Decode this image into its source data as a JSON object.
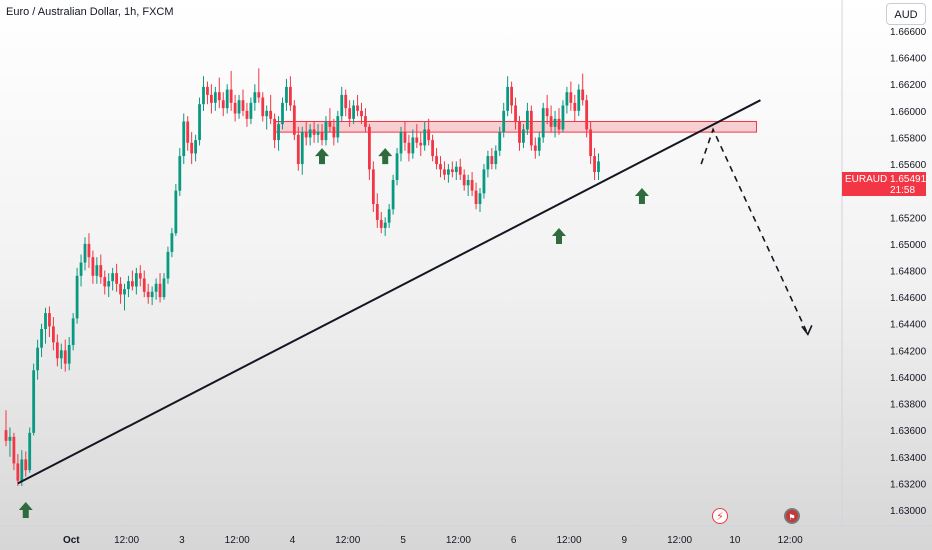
{
  "chart_title": "Euro / Australian Dollar, 1h, FXCM",
  "currency_button": "AUD",
  "price_tag": {
    "symbol": "EURAUD",
    "price": "1.65491",
    "countdown": "21:58",
    "color": "#f23645"
  },
  "colors": {
    "up": "#089981",
    "down": "#f23645",
    "trendline": "#131722",
    "zone": "#f23645",
    "arrow": "#2e6b3e"
  },
  "icons": [
    "flash-icon",
    "flag-icon",
    "up-arrow-icon"
  ],
  "chart_data": {
    "type": "candlestick",
    "title": "Euro / Australian Dollar, 1h, FXCM",
    "ylim": [
      1.629,
      1.667
    ],
    "y_ticks": [
      "1.63000",
      "1.63200",
      "1.63400",
      "1.63600",
      "1.63800",
      "1.64000",
      "1.64200",
      "1.64400",
      "1.64600",
      "1.64800",
      "1.65000",
      "1.65200",
      "1.65400",
      "1.65600",
      "1.65800",
      "1.66000",
      "1.66200",
      "1.66400",
      "1.66600"
    ],
    "y_tick_values": [
      1.63,
      1.632,
      1.634,
      1.636,
      1.638,
      1.64,
      1.642,
      1.644,
      1.646,
      1.648,
      1.65,
      1.652,
      1.654,
      1.656,
      1.658,
      1.66,
      1.662,
      1.664,
      1.666
    ],
    "x_ticks": [
      "Oct",
      "12:00",
      "3",
      "12:00",
      "4",
      "12:00",
      "5",
      "12:00",
      "6",
      "12:00",
      "9",
      "12:00",
      "10",
      "12:00"
    ],
    "x_tick_bars": [
      14,
      28,
      42,
      56,
      70,
      84,
      98,
      112,
      126,
      140,
      154,
      168,
      182,
      196
    ],
    "bar_count_range": [
      0,
      200
    ],
    "ohlc_note": "bars approximated from the screenshot; [open, high, low, close]",
    "bars": [
      [
        1.636,
        1.6375,
        1.6348,
        1.6352
      ],
      [
        1.6352,
        1.6362,
        1.634,
        1.6355
      ],
      [
        1.6355,
        1.6358,
        1.633,
        1.6335
      ],
      [
        1.6335,
        1.6342,
        1.6318,
        1.6322
      ],
      [
        1.6322,
        1.6345,
        1.6318,
        1.6338
      ],
      [
        1.6338,
        1.6344,
        1.6325,
        1.633
      ],
      [
        1.633,
        1.6362,
        1.6328,
        1.6358
      ],
      [
        1.6358,
        1.641,
        1.6356,
        1.6405
      ],
      [
        1.6405,
        1.6428,
        1.6398,
        1.6422
      ],
      [
        1.6422,
        1.644,
        1.6415,
        1.6436
      ],
      [
        1.6436,
        1.6452,
        1.6425,
        1.6448
      ],
      [
        1.6448,
        1.6453,
        1.643,
        1.6438
      ],
      [
        1.6438,
        1.6445,
        1.642,
        1.6426
      ],
      [
        1.6426,
        1.6432,
        1.6408,
        1.6414
      ],
      [
        1.6414,
        1.6425,
        1.6406,
        1.642
      ],
      [
        1.642,
        1.6428,
        1.6404,
        1.641
      ],
      [
        1.641,
        1.643,
        1.6405,
        1.6424
      ],
      [
        1.6424,
        1.6448,
        1.642,
        1.6444
      ],
      [
        1.6444,
        1.6482,
        1.644,
        1.6476
      ],
      [
        1.6476,
        1.6492,
        1.6468,
        1.6486
      ],
      [
        1.6486,
        1.6505,
        1.648,
        1.65
      ],
      [
        1.65,
        1.6508,
        1.6482,
        1.649
      ],
      [
        1.649,
        1.6495,
        1.647,
        1.6476
      ],
      [
        1.6476,
        1.649,
        1.647,
        1.6484
      ],
      [
        1.6484,
        1.6492,
        1.647,
        1.6475
      ],
      [
        1.6475,
        1.648,
        1.6462,
        1.6468
      ],
      [
        1.6468,
        1.6478,
        1.646,
        1.6472
      ],
      [
        1.6472,
        1.6482,
        1.6465,
        1.6478
      ],
      [
        1.6478,
        1.6485,
        1.6464,
        1.647
      ],
      [
        1.647,
        1.6475,
        1.6455,
        1.6462
      ],
      [
        1.6462,
        1.647,
        1.645,
        1.6466
      ],
      [
        1.6466,
        1.6476,
        1.646,
        1.6472
      ],
      [
        1.6472,
        1.648,
        1.6465,
        1.6468
      ],
      [
        1.6468,
        1.6482,
        1.6462,
        1.6478
      ],
      [
        1.6478,
        1.6484,
        1.6468,
        1.6474
      ],
      [
        1.6474,
        1.648,
        1.646,
        1.6464
      ],
      [
        1.6464,
        1.647,
        1.6455,
        1.646
      ],
      [
        1.646,
        1.6468,
        1.6454,
        1.6464
      ],
      [
        1.6464,
        1.6474,
        1.6458,
        1.647
      ],
      [
        1.647,
        1.6478,
        1.6456,
        1.646
      ],
      [
        1.646,
        1.6478,
        1.6458,
        1.6474
      ],
      [
        1.6474,
        1.6498,
        1.647,
        1.6494
      ],
      [
        1.6494,
        1.6512,
        1.649,
        1.6508
      ],
      [
        1.6508,
        1.6545,
        1.6506,
        1.654
      ],
      [
        1.654,
        1.6572,
        1.6536,
        1.6566
      ],
      [
        1.6566,
        1.6598,
        1.656,
        1.6592
      ],
      [
        1.6592,
        1.6596,
        1.657,
        1.6576
      ],
      [
        1.6576,
        1.6584,
        1.656,
        1.6568
      ],
      [
        1.6568,
        1.6582,
        1.6562,
        1.6578
      ],
      [
        1.6578,
        1.661,
        1.6574,
        1.6605
      ],
      [
        1.6605,
        1.6626,
        1.66,
        1.6618
      ],
      [
        1.6618,
        1.6622,
        1.6605,
        1.6612
      ],
      [
        1.6612,
        1.662,
        1.6598,
        1.6606
      ],
      [
        1.6606,
        1.6618,
        1.66,
        1.6614
      ],
      [
        1.6614,
        1.6625,
        1.6602,
        1.6608
      ],
      [
        1.6608,
        1.6614,
        1.6596,
        1.6602
      ],
      [
        1.6602,
        1.662,
        1.6598,
        1.6616
      ],
      [
        1.6616,
        1.663,
        1.66,
        1.6606
      ],
      [
        1.6606,
        1.6612,
        1.6592,
        1.6598
      ],
      [
        1.6598,
        1.6612,
        1.6594,
        1.6608
      ],
      [
        1.6608,
        1.6616,
        1.6596,
        1.66
      ],
      [
        1.66,
        1.6606,
        1.6588,
        1.6594
      ],
      [
        1.6594,
        1.661,
        1.659,
        1.6606
      ],
      [
        1.6606,
        1.662,
        1.66,
        1.6614
      ],
      [
        1.6614,
        1.6632,
        1.6606,
        1.661
      ],
      [
        1.661,
        1.6614,
        1.6592,
        1.6596
      ],
      [
        1.6596,
        1.6604,
        1.6586,
        1.66
      ],
      [
        1.66,
        1.6612,
        1.659,
        1.6594
      ],
      [
        1.6594,
        1.6598,
        1.6572,
        1.6578
      ],
      [
        1.6578,
        1.6596,
        1.657,
        1.659
      ],
      [
        1.659,
        1.661,
        1.6586,
        1.6606
      ],
      [
        1.6606,
        1.6624,
        1.66,
        1.6618
      ],
      [
        1.6618,
        1.6626,
        1.66,
        1.6604
      ],
      [
        1.6604,
        1.6608,
        1.6578,
        1.6582
      ],
      [
        1.6582,
        1.6588,
        1.6555,
        1.656
      ],
      [
        1.656,
        1.6588,
        1.6552,
        1.6584
      ],
      [
        1.6584,
        1.6592,
        1.6574,
        1.658
      ],
      [
        1.658,
        1.659,
        1.6574,
        1.6586
      ],
      [
        1.6586,
        1.6592,
        1.6576,
        1.6582
      ],
      [
        1.6582,
        1.659,
        1.6576,
        1.6584
      ],
      [
        1.6584,
        1.659,
        1.6574,
        1.6578
      ],
      [
        1.6578,
        1.6596,
        1.6574,
        1.6592
      ],
      [
        1.6592,
        1.6602,
        1.6584,
        1.6588
      ],
      [
        1.6588,
        1.6594,
        1.6574,
        1.658
      ],
      [
        1.658,
        1.66,
        1.6576,
        1.6596
      ],
      [
        1.6596,
        1.6618,
        1.6592,
        1.6612
      ],
      [
        1.6612,
        1.6616,
        1.6596,
        1.6602
      ],
      [
        1.6602,
        1.6608,
        1.6588,
        1.6594
      ],
      [
        1.6594,
        1.6608,
        1.659,
        1.6604
      ],
      [
        1.6604,
        1.6612,
        1.6596,
        1.66
      ],
      [
        1.66,
        1.6606,
        1.659,
        1.6596
      ],
      [
        1.6596,
        1.6602,
        1.6584,
        1.6588
      ],
      [
        1.6588,
        1.659,
        1.6548,
        1.6556
      ],
      [
        1.6556,
        1.6562,
        1.6524,
        1.653
      ],
      [
        1.653,
        1.6538,
        1.6512,
        1.6518
      ],
      [
        1.6518,
        1.6524,
        1.6508,
        1.6512
      ],
      [
        1.6512,
        1.652,
        1.6506,
        1.6516
      ],
      [
        1.6516,
        1.653,
        1.6512,
        1.6526
      ],
      [
        1.6526,
        1.6552,
        1.6522,
        1.6548
      ],
      [
        1.6548,
        1.6572,
        1.6544,
        1.6568
      ],
      [
        1.6568,
        1.6588,
        1.6562,
        1.6584
      ],
      [
        1.6584,
        1.6592,
        1.657,
        1.6576
      ],
      [
        1.6576,
        1.6582,
        1.6562,
        1.6568
      ],
      [
        1.6568,
        1.6586,
        1.6564,
        1.658
      ],
      [
        1.658,
        1.659,
        1.6572,
        1.6576
      ],
      [
        1.6576,
        1.6584,
        1.6566,
        1.6574
      ],
      [
        1.6574,
        1.6592,
        1.657,
        1.6586
      ],
      [
        1.6586,
        1.6594,
        1.6574,
        1.6578
      ],
      [
        1.6578,
        1.6582,
        1.6562,
        1.6566
      ],
      [
        1.6566,
        1.6572,
        1.6556,
        1.656
      ],
      [
        1.656,
        1.6566,
        1.655,
        1.6556
      ],
      [
        1.6556,
        1.6562,
        1.6548,
        1.6552
      ],
      [
        1.6552,
        1.656,
        1.6546,
        1.6556
      ],
      [
        1.6556,
        1.6562,
        1.655,
        1.6554
      ],
      [
        1.6554,
        1.6562,
        1.6548,
        1.6558
      ],
      [
        1.6558,
        1.6564,
        1.6548,
        1.6552
      ],
      [
        1.6552,
        1.6556,
        1.654,
        1.6544
      ],
      [
        1.6544,
        1.6552,
        1.6536,
        1.6548
      ],
      [
        1.6548,
        1.6554,
        1.6536,
        1.654
      ],
      [
        1.654,
        1.6546,
        1.6526,
        1.653
      ],
      [
        1.653,
        1.6542,
        1.6524,
        1.6538
      ],
      [
        1.6538,
        1.656,
        1.6534,
        1.6556
      ],
      [
        1.6556,
        1.657,
        1.655,
        1.6566
      ],
      [
        1.6566,
        1.6572,
        1.6556,
        1.656
      ],
      [
        1.656,
        1.6574,
        1.6556,
        1.657
      ],
      [
        1.657,
        1.6588,
        1.6566,
        1.6584
      ],
      [
        1.6584,
        1.6606,
        1.658,
        1.66
      ],
      [
        1.66,
        1.6626,
        1.6596,
        1.6618
      ],
      [
        1.6618,
        1.6622,
        1.6598,
        1.6604
      ],
      [
        1.6604,
        1.661,
        1.6586,
        1.6592
      ],
      [
        1.6592,
        1.6596,
        1.657,
        1.6576
      ],
      [
        1.6576,
        1.659,
        1.6572,
        1.6586
      ],
      [
        1.6586,
        1.6606,
        1.6582,
        1.66
      ],
      [
        1.66,
        1.6604,
        1.657,
        1.6574
      ],
      [
        1.6574,
        1.658,
        1.6564,
        1.657
      ],
      [
        1.657,
        1.6584,
        1.6566,
        1.658
      ],
      [
        1.658,
        1.6606,
        1.6576,
        1.6602
      ],
      [
        1.6602,
        1.6612,
        1.659,
        1.6596
      ],
      [
        1.6596,
        1.6604,
        1.6584,
        1.6588
      ],
      [
        1.6588,
        1.66,
        1.658,
        1.6594
      ],
      [
        1.6594,
        1.6602,
        1.6582,
        1.6586
      ],
      [
        1.6586,
        1.6608,
        1.6584,
        1.6604
      ],
      [
        1.6604,
        1.6618,
        1.6598,
        1.6614
      ],
      [
        1.6614,
        1.6622,
        1.66,
        1.6606
      ],
      [
        1.6606,
        1.6612,
        1.6592,
        1.66
      ],
      [
        1.66,
        1.662,
        1.6596,
        1.6616
      ],
      [
        1.6616,
        1.6628,
        1.6604,
        1.6608
      ],
      [
        1.6608,
        1.6612,
        1.658,
        1.6586
      ],
      [
        1.6586,
        1.6592,
        1.656,
        1.6566
      ],
      [
        1.6566,
        1.6572,
        1.6548,
        1.6554
      ],
      [
        1.6554,
        1.6568,
        1.6548,
        1.6562
      ]
    ],
    "annotations": [
      {
        "type": "trendline",
        "from": {
          "bar": 3,
          "price": 1.632
        },
        "to": {
          "bar": 191,
          "price": 1.6608
        }
      },
      {
        "type": "resistance-zone",
        "price_range": [
          1.6584,
          1.6592
        ],
        "bars": [
          68,
          190
        ]
      },
      {
        "type": "forecast-arrow",
        "points": [
          {
            "bar": 176,
            "price": 1.656
          },
          {
            "bar": 179,
            "price": 1.6586
          },
          {
            "bar": 203,
            "price": 1.6432
          }
        ]
      },
      {
        "type": "support-marker",
        "bar": 5,
        "price": 1.6312
      },
      {
        "type": "support-marker",
        "bar": 80,
        "price": 1.6578
      },
      {
        "type": "support-marker",
        "bar": 96,
        "price": 1.6578
      },
      {
        "type": "support-marker",
        "bar": 140,
        "price": 1.6518
      },
      {
        "type": "support-marker",
        "bar": 161,
        "price": 1.6548
      }
    ]
  }
}
